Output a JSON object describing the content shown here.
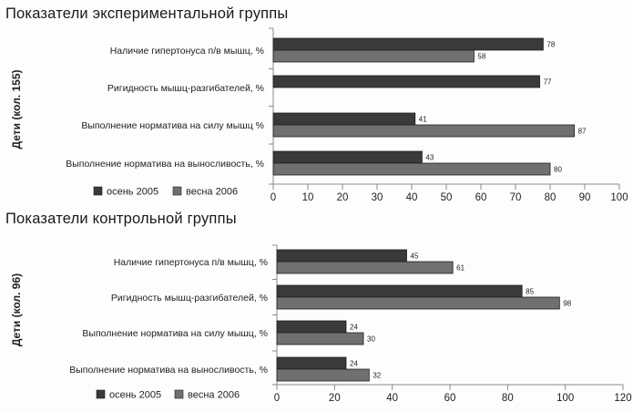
{
  "chart_data": [
    {
      "type": "bar",
      "orientation": "horizontal",
      "title": "Показатели экспериментальной  группы",
      "ylabel": "Дети (кол. 155)",
      "categories": [
        "Наличие гипертонуса п/в мышц, %",
        "Ригидность мышц-разгибателей, %",
        "Выполнение норматива на силу мышц %",
        "Выполнение норматива на выносливость, %"
      ],
      "series": [
        {
          "name": "осень 2005",
          "color": "#3a3a3a",
          "values": [
            78,
            77,
            41,
            43
          ]
        },
        {
          "name": "весна 2006",
          "color": "#707070",
          "values": [
            58,
            null,
            87,
            80
          ]
        }
      ],
      "xlim": [
        0,
        100
      ],
      "xticks": [
        0,
        10,
        20,
        30,
        40,
        50,
        60,
        70,
        80,
        90,
        100
      ],
      "grid": false,
      "legend": "bottom-left"
    },
    {
      "type": "bar",
      "orientation": "horizontal",
      "title": "Показатели контрольной  группы",
      "ylabel": "Дети (кол. 96)",
      "categories": [
        "Наличие гипертонуса п/в мышц, %",
        "Ригидность мышц-разгибателей, %",
        "Выполнение норматива на силу мышц, %",
        "Выполнение норматива на выносливость, %"
      ],
      "series": [
        {
          "name": "осень 2005",
          "color": "#3a3a3a",
          "values": [
            45,
            85,
            24,
            24
          ]
        },
        {
          "name": "весна 2006",
          "color": "#707070",
          "values": [
            61,
            98,
            30,
            32
          ]
        }
      ],
      "xlim": [
        0,
        120
      ],
      "xticks": [
        0,
        20,
        40,
        60,
        80,
        100,
        120
      ],
      "grid": false,
      "legend": "bottom-left"
    }
  ]
}
